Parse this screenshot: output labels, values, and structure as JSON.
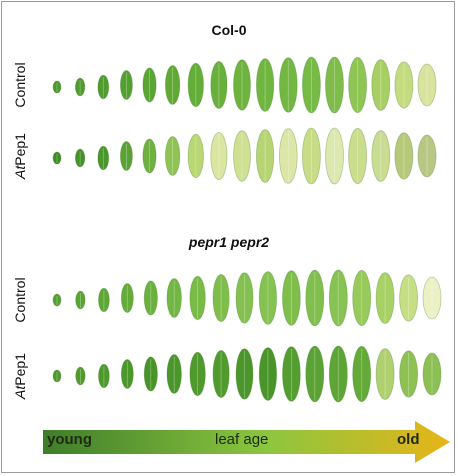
{
  "panels": [
    {
      "title": "Col-0",
      "title_italic": false,
      "rows": [
        {
          "label_prefix": "",
          "label_italic_part": "",
          "label": "Control",
          "leaf_colors": [
            "#4e9a2c",
            "#4f9b2d",
            "#519c2e",
            "#53a02f",
            "#5aa534",
            "#5fa934",
            "#64ad39",
            "#67b03b",
            "#6db33e",
            "#70b540",
            "#73b743",
            "#78ba46",
            "#7fbc4b",
            "#8fc554",
            "#a7cf64",
            "#c4dc80",
            "#d9e39e"
          ]
        },
        {
          "label_prefix": "At",
          "label_italic_part": "At",
          "label": "Pep1",
          "leaf_colors": [
            "#3f8d24",
            "#44912a",
            "#4b962c",
            "#5aa236",
            "#6fb141",
            "#8fc354",
            "#b9d772",
            "#dbe6a1",
            "#cfe092",
            "#b7d474",
            "#dce6a6",
            "#c8dc88",
            "#dde8b0",
            "#c9dd8d",
            "#cadb92",
            "#b6c97a",
            "#b8c884"
          ]
        }
      ]
    },
    {
      "title": "pepr1 pepr2",
      "title_italic": true,
      "rows": [
        {
          "label_prefix": "",
          "label_italic_part": "",
          "label": "Control",
          "leaf_colors": [
            "#569f32",
            "#5aa434",
            "#5ea735",
            "#64ab39",
            "#6ab03c",
            "#72b643",
            "#7abb48",
            "#80be4c",
            "#84c150",
            "#86c251",
            "#7fbe4b",
            "#80be4d",
            "#87c352",
            "#97ca5b",
            "#a8d165",
            "#c6df85",
            "#ecf0c5"
          ]
        },
        {
          "label_prefix": "At",
          "label_italic_part": "At",
          "label": "Pep1",
          "leaf_colors": [
            "#4f982c",
            "#519b2d",
            "#4e992c",
            "#4c972b",
            "#489428",
            "#4b962b",
            "#4f992d",
            "#519b2e",
            "#4b962b",
            "#4a952a",
            "#549d30",
            "#5aa233",
            "#5da534",
            "#64aa38",
            "#b0cf6e",
            "#8dc153",
            "#8cc054"
          ]
        }
      ]
    }
  ],
  "age_axis": {
    "left_label": "young",
    "center_label": "leaf age",
    "right_label": "old",
    "colors": {
      "start": "#3f7d2a",
      "mid": "#8cc63f",
      "end": "#e8b418"
    }
  }
}
